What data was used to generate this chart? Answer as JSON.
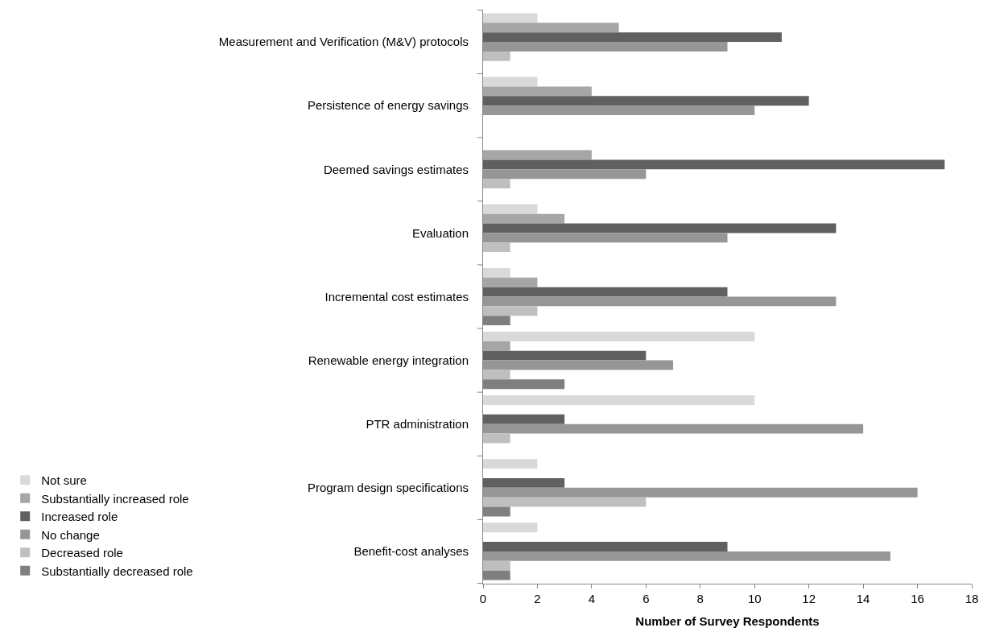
{
  "chart_data": {
    "type": "bar",
    "orientation": "horizontal",
    "xlabel": "Number of Survey Respondents",
    "categories": [
      "Measurement and Verification (M&V) protocols",
      "Persistence of energy savings",
      "Deemed savings estimates",
      "Evaluation",
      "Incremental cost estimates",
      "Renewable energy integration",
      "PTR administration",
      "Program design specifications",
      "Benefit-cost analyses"
    ],
    "series": [
      {
        "name": "Not sure",
        "color": "#d9d9d9",
        "values": [
          2,
          2,
          null,
          2,
          1,
          10,
          10,
          2,
          2
        ]
      },
      {
        "name": "Substantially increased role",
        "color": "#a6a6a6",
        "values": [
          5,
          4,
          4,
          3,
          2,
          1,
          null,
          null,
          null
        ]
      },
      {
        "name": "Increased role",
        "color": "#606060",
        "values": [
          11,
          12,
          17,
          13,
          9,
          6,
          3,
          3,
          9
        ]
      },
      {
        "name": "No change",
        "color": "#969696",
        "values": [
          9,
          10,
          6,
          9,
          13,
          7,
          14,
          16,
          15
        ]
      },
      {
        "name": "Decreased role",
        "color": "#bfbfbf",
        "values": [
          1,
          null,
          1,
          1,
          2,
          1,
          1,
          6,
          1
        ]
      },
      {
        "name": "Substantially decreased role",
        "color": "#7f7f7f",
        "values": [
          null,
          null,
          null,
          null,
          1,
          3,
          null,
          1,
          1
        ]
      }
    ],
    "xlim": [
      0,
      18
    ],
    "xticks": [
      0,
      2,
      4,
      6,
      8,
      10,
      12,
      14,
      16,
      18
    ],
    "legend": "bottom left"
  }
}
